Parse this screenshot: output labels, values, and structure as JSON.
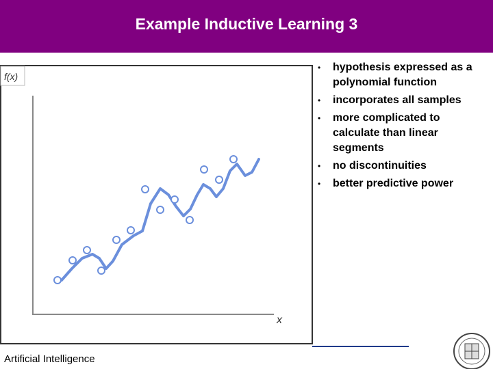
{
  "header": {
    "title": "Example Inductive Learning 3"
  },
  "diagram": {
    "y_label": "f(x)",
    "x_label": "x"
  },
  "bullets": [
    "hypothesis expressed as a polynomial function",
    "incorporates all samples",
    "more complicated to calculate than linear segments",
    "no discontinuities",
    "better predictive power"
  ],
  "footer": {
    "text": "Artificial Intelligence"
  }
}
